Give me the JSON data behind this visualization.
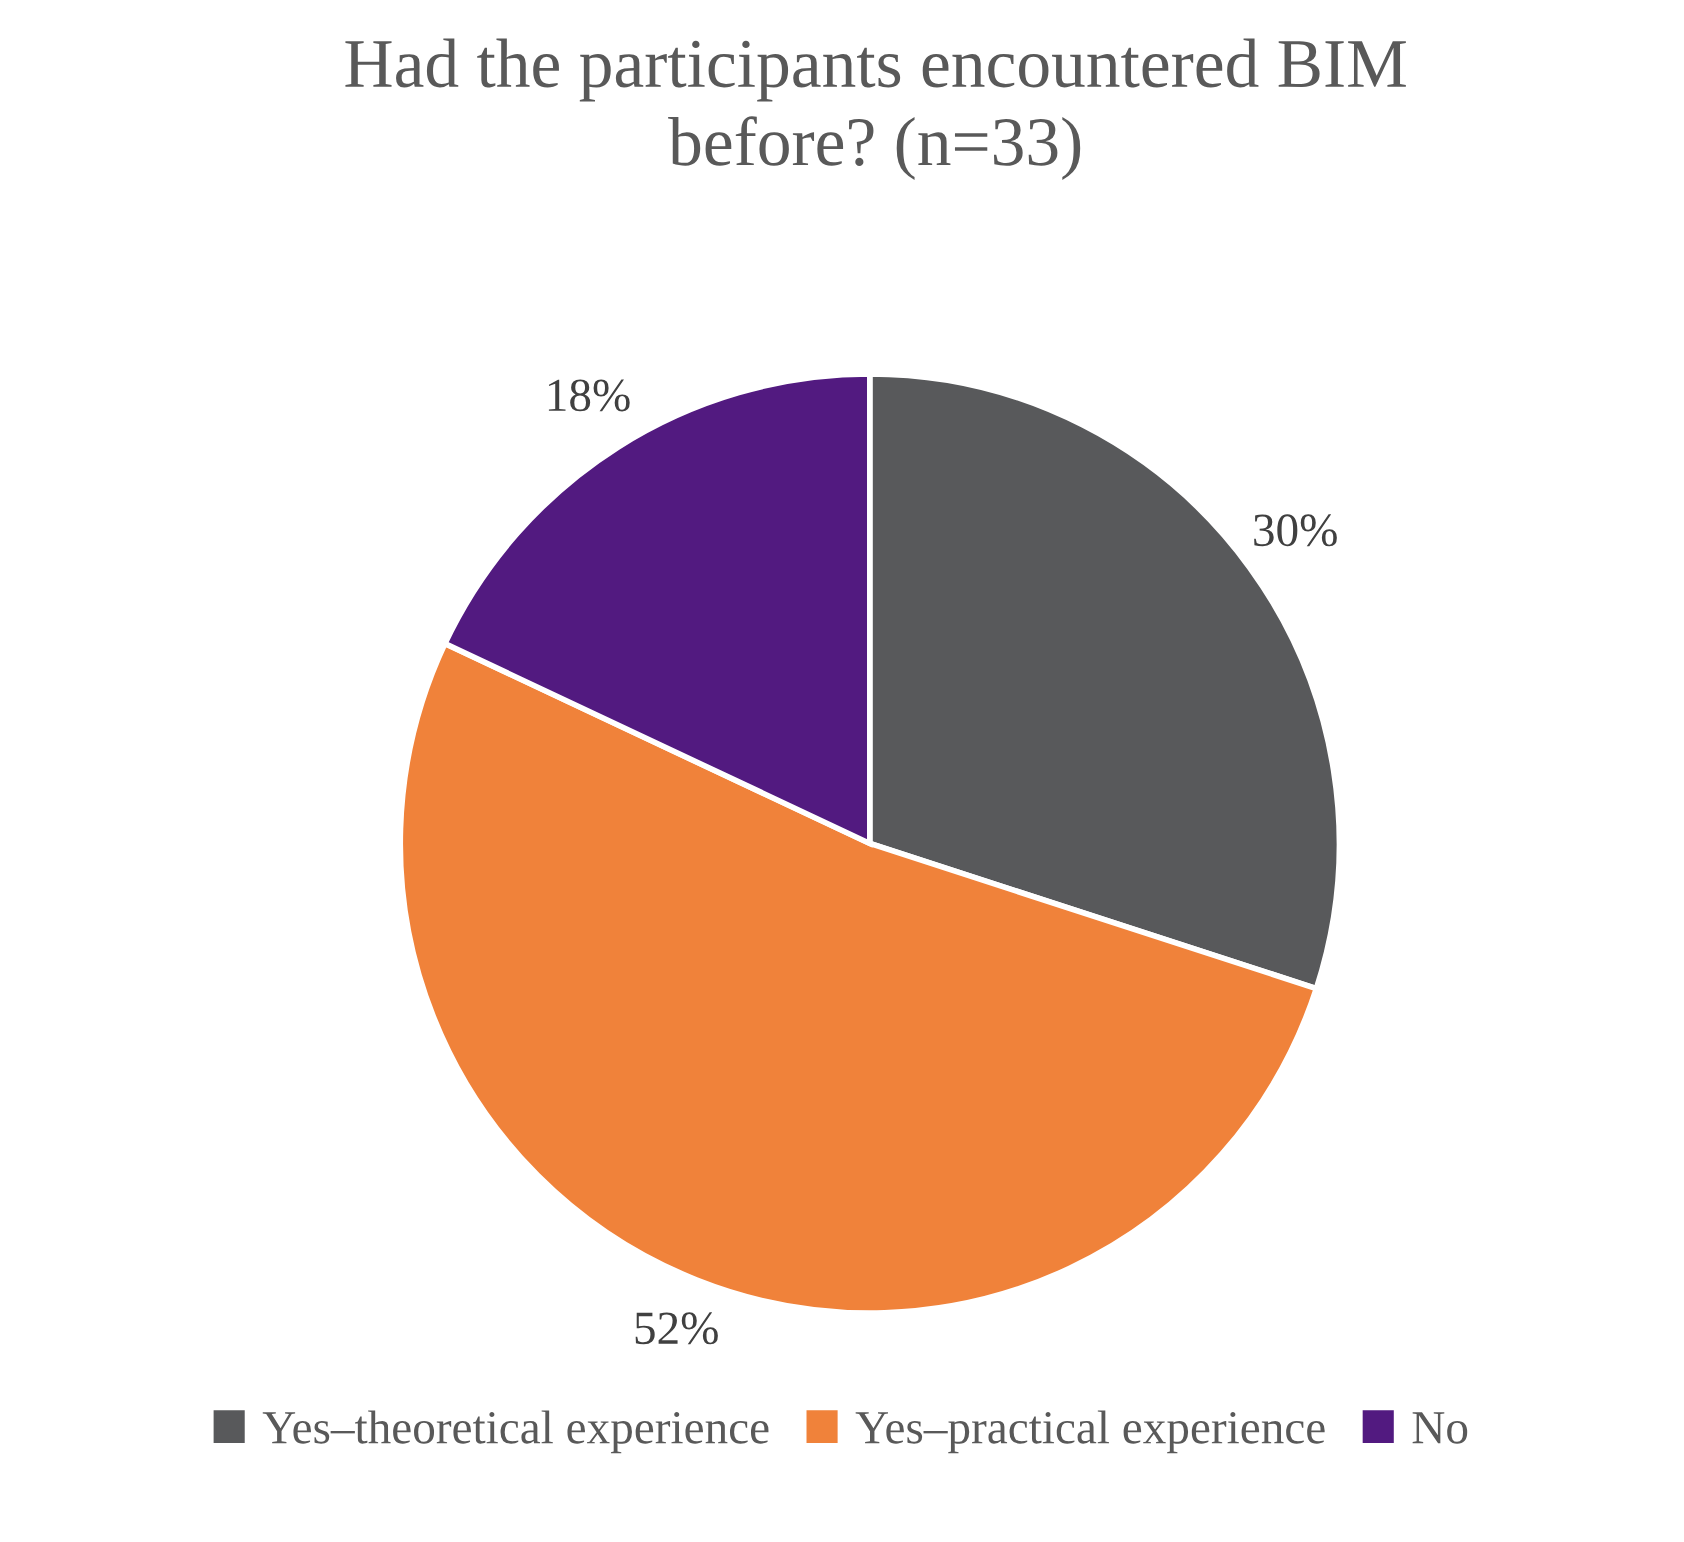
{
  "chart_data": {
    "type": "pie",
    "title": "Had the participants encountered BIM before? (n=33)",
    "categories": [
      "Yes–theoretical experience",
      "Yes–practical experience",
      "No"
    ],
    "values": [
      30,
      52,
      18
    ],
    "colors": [
      "#58595b",
      "#f0823a",
      "#521a80"
    ],
    "value_labels": [
      "30%",
      "52%",
      "18%"
    ],
    "legend": "bottom"
  }
}
